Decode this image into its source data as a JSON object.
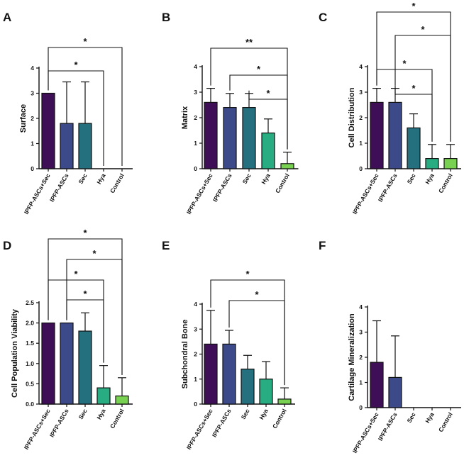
{
  "colors": {
    "IPFP-ASCs+Sec": "#3e0f56",
    "IPFP-ASCs": "#3d4a8a",
    "Sec": "#25707f",
    "Hya": "#27ad81",
    "Control": "#79d151"
  },
  "chart_data": [
    {
      "panel": "A",
      "type": "bar",
      "ylabel": "Surface",
      "ylim": [
        0,
        4
      ],
      "ticks": [
        "0",
        "1",
        "2",
        "3",
        "4"
      ],
      "categories": [
        "IPFP-ASCs+Sec",
        "IPFP-ASCs",
        "Sec",
        "Hya",
        "Control"
      ],
      "values": [
        3.0,
        1.8,
        1.8,
        0,
        0
      ],
      "errors": [
        0,
        1.65,
        1.65,
        0,
        0
      ],
      "significance": [
        {
          "from": "IPFP-ASCs+Sec",
          "to": "Hya",
          "label": "*"
        },
        {
          "from": "IPFP-ASCs+Sec",
          "to": "Control",
          "label": "*"
        }
      ]
    },
    {
      "panel": "B",
      "type": "bar",
      "ylabel": "Matrix",
      "ylim": [
        0,
        4
      ],
      "ticks": [
        "0",
        "1",
        "2",
        "3",
        "4"
      ],
      "categories": [
        "IPFP-ASCs+Sec",
        "IPFP-ASCs",
        "Sec",
        "Hya",
        "Control"
      ],
      "values": [
        2.6,
        2.4,
        2.4,
        1.4,
        0.2
      ],
      "errors": [
        0.55,
        0.55,
        0.55,
        0.55,
        0.45
      ],
      "significance": [
        {
          "from": "Sec",
          "to": "Control",
          "label": "*"
        },
        {
          "from": "IPFP-ASCs",
          "to": "Control",
          "label": "*"
        },
        {
          "from": "IPFP-ASCs+Sec",
          "to": "Control",
          "label": "**"
        }
      ]
    },
    {
      "panel": "C",
      "type": "bar",
      "ylabel": "Cell Distribution",
      "ylim": [
        0,
        4
      ],
      "ticks": [
        "0",
        "1",
        "2",
        "3",
        "4"
      ],
      "categories": [
        "IPFP-ASCs+Sec",
        "IPFP-ASCs",
        "Sec",
        "Hya",
        "Control"
      ],
      "values": [
        2.6,
        2.6,
        1.6,
        0.4,
        0.4
      ],
      "errors": [
        0.55,
        0.55,
        0.55,
        0.55,
        0.55
      ],
      "significance": [
        {
          "from": "IPFP-ASCs",
          "to": "Hya",
          "label": "*"
        },
        {
          "from": "IPFP-ASCs+Sec",
          "to": "Hya",
          "label": "*"
        },
        {
          "from": "IPFP-ASCs",
          "to": "Control",
          "label": "*"
        },
        {
          "from": "IPFP-ASCs+Sec",
          "to": "Control",
          "label": "*"
        }
      ]
    },
    {
      "panel": "D",
      "type": "bar",
      "ylabel": "Cell Population Viability",
      "ylim": [
        0,
        2.5
      ],
      "ticks": [
        "0.0",
        "0.5",
        "1.0",
        "1.5",
        "2.0",
        "2.5"
      ],
      "categories": [
        "IPFP-ASCs+Sec",
        "IPFP-ASCs",
        "Sec",
        "Hya",
        "Control"
      ],
      "values": [
        2.0,
        2.0,
        1.8,
        0.4,
        0.2
      ],
      "errors": [
        0,
        0,
        0.45,
        0.55,
        0.45
      ],
      "significance": [
        {
          "from": "IPFP-ASCs",
          "to": "Hya",
          "label": "*"
        },
        {
          "from": "IPFP-ASCs+Sec",
          "to": "Hya",
          "label": "*"
        },
        {
          "from": "IPFP-ASCs",
          "to": "Control",
          "label": "*"
        },
        {
          "from": "IPFP-ASCs+Sec",
          "to": "Control",
          "label": "*"
        }
      ]
    },
    {
      "panel": "E",
      "type": "bar",
      "ylabel": "Subchondral Bone",
      "ylim": [
        0,
        4
      ],
      "ticks": [
        "0",
        "1",
        "2",
        "3",
        "4"
      ],
      "categories": [
        "IPFP-ASCs+Sec",
        "IPFP-ASCs",
        "Sec",
        "Hya",
        "Control"
      ],
      "values": [
        2.4,
        2.4,
        1.4,
        1.0,
        0.2
      ],
      "errors": [
        1.35,
        0.55,
        0.55,
        0.7,
        0.45
      ],
      "significance": [
        {
          "from": "IPFP-ASCs",
          "to": "Control",
          "label": "*"
        },
        {
          "from": "IPFP-ASCs+Sec",
          "to": "Control",
          "label": "*"
        }
      ]
    },
    {
      "panel": "F",
      "type": "bar",
      "ylabel": "Cartilage Mineralization",
      "ylim": [
        0,
        4
      ],
      "ticks": [
        "0",
        "1",
        "2",
        "3",
        "4"
      ],
      "categories": [
        "IPFP-ASCs+Sec",
        "IPFP-ASCs",
        "Sec",
        "Hya",
        "Control"
      ],
      "values": [
        1.8,
        1.2,
        0,
        0,
        0
      ],
      "errors": [
        1.65,
        1.65,
        0,
        0,
        0
      ],
      "significance": []
    }
  ]
}
